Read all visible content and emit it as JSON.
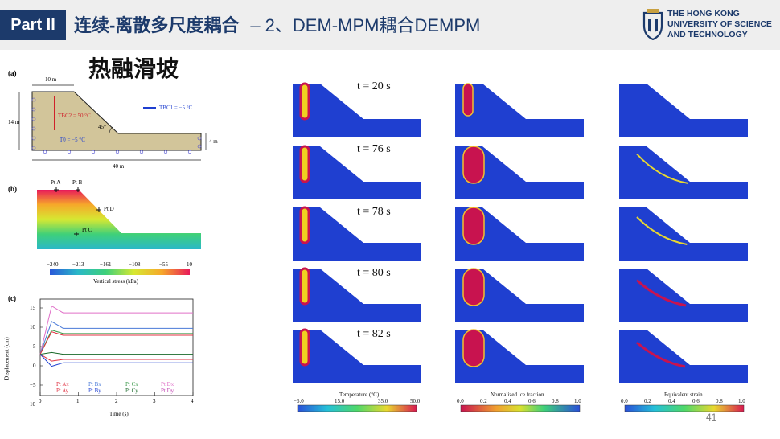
{
  "header": {
    "badge": "Part II",
    "title": "连续-离散多尺度耦合",
    "subtitle": "– 2、DEM-MPM耦合DEMPM",
    "logo_lines": [
      "THE HONG KONG",
      "UNIVERSITY OF SCIENCE",
      "AND TECHNOLOGY"
    ]
  },
  "subheading": "热融滑坡",
  "panel_a": {
    "label": "(a)",
    "dim_top": "10 m",
    "dim_left": "14 m",
    "dim_right": "4 m",
    "dim_bottom": "40 m",
    "angle": "45°",
    "t_bc2": "Tₖ₂ = 50 °C",
    "t_bc2_text": "TBC2 = 50 °C",
    "t0": "T0 = −5 °C",
    "t_bc1": "TBC1 = −5 °C"
  },
  "panel_b": {
    "label": "(b)",
    "points": [
      "Pt A",
      "Pt B",
      "Pt D",
      "Pt C"
    ],
    "ticks": [
      "−240",
      "−213",
      "−161",
      "−108",
      "−55",
      "10"
    ],
    "title": "Vertical stress (kPa)"
  },
  "panel_c": {
    "label": "(c)",
    "ylabel": "Displacement (cm)",
    "xlabel": "Time (s)",
    "xticks": [
      "0",
      "1",
      "2",
      "3",
      "4"
    ],
    "yticks": [
      "15",
      "10",
      "5",
      "0",
      "−5",
      "−10"
    ],
    "legend": [
      "Pt Ax",
      "Pt Ay",
      "Pt Bx",
      "Pt By",
      "Pt Cx",
      "Pt Cy",
      "Pt Dx",
      "Pt Dy"
    ]
  },
  "snapshots": {
    "times": [
      "t = 20 s",
      "t = 76 s",
      "t = 78 s",
      "t = 80 s",
      "t = 82 s"
    ]
  },
  "colorbars": [
    {
      "title": "Temperature (°C)",
      "ticks": [
        "−5.0",
        "15.0",
        "35.0",
        "50.0"
      ]
    },
    {
      "title": "Normalized ice fraction",
      "ticks": [
        "0.0",
        "0.2",
        "0.4",
        "0.6",
        "0.8",
        "1.0"
      ]
    },
    {
      "title": "Equivalent strain",
      "ticks": [
        "0.0",
        "0.2",
        "0.4",
        "0.6",
        "0.8",
        "1.0"
      ]
    }
  ],
  "page_number": "41",
  "colors": {
    "navy": "#1c3a6b",
    "field_blue": "#1f3fd0",
    "hot": "#c8134f"
  }
}
